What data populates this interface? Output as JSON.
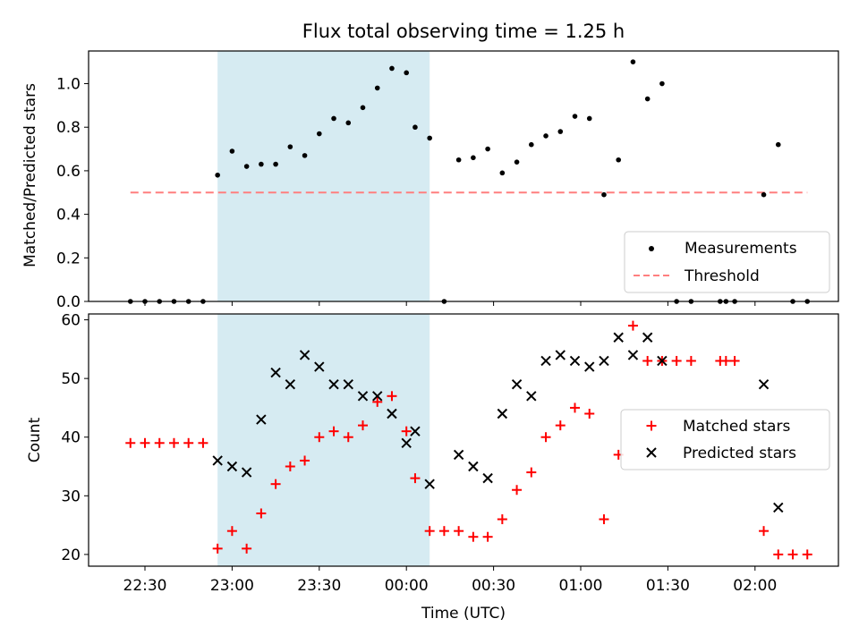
{
  "chart_data": [
    {
      "type": "scatter",
      "title": "Flux total observing time = 1.25 h",
      "ylabel": "Matched/Predicted stars",
      "xlabel": "",
      "ylim": [
        0,
        1.15
      ],
      "yticks": [
        "0.0",
        "0.2",
        "0.4",
        "0.6",
        "0.8",
        "1.0"
      ],
      "grid": false,
      "legend_position": "lower-right",
      "highlight_interval": [
        "22:55",
        "00:08"
      ],
      "series": [
        {
          "name": "Measurements",
          "marker": "dot",
          "color": "#000000",
          "points": [
            [
              "22:25",
              0.0
            ],
            [
              "22:30",
              0.0
            ],
            [
              "22:35",
              0.0
            ],
            [
              "22:40",
              0.0
            ],
            [
              "22:45",
              0.0
            ],
            [
              "22:50",
              0.0
            ],
            [
              "22:55",
              0.58
            ],
            [
              "23:00",
              0.69
            ],
            [
              "23:05",
              0.62
            ],
            [
              "23:10",
              0.63
            ],
            [
              "23:15",
              0.63
            ],
            [
              "23:20",
              0.71
            ],
            [
              "23:25",
              0.67
            ],
            [
              "23:30",
              0.77
            ],
            [
              "23:35",
              0.84
            ],
            [
              "23:40",
              0.82
            ],
            [
              "23:45",
              0.89
            ],
            [
              "23:50",
              0.98
            ],
            [
              "23:55",
              1.07
            ],
            [
              "00:00",
              1.05
            ],
            [
              "00:03",
              0.8
            ],
            [
              "00:08",
              0.75
            ],
            [
              "00:13",
              0.0
            ],
            [
              "00:18",
              0.65
            ],
            [
              "00:23",
              0.66
            ],
            [
              "00:28",
              0.7
            ],
            [
              "00:33",
              0.59
            ],
            [
              "00:38",
              0.64
            ],
            [
              "00:43",
              0.72
            ],
            [
              "00:48",
              0.76
            ],
            [
              "00:53",
              0.78
            ],
            [
              "00:58",
              0.85
            ],
            [
              "01:03",
              0.84
            ],
            [
              "01:08",
              0.49
            ],
            [
              "01:13",
              0.65
            ],
            [
              "01:18",
              1.1
            ],
            [
              "01:23",
              0.93
            ],
            [
              "01:28",
              1.0
            ],
            [
              "01:33",
              0.0
            ],
            [
              "01:38",
              0.0
            ],
            [
              "01:48",
              0.0
            ],
            [
              "01:50",
              0.0
            ],
            [
              "01:53",
              0.0
            ],
            [
              "02:03",
              0.49
            ],
            [
              "02:08",
              0.72
            ],
            [
              "02:13",
              0.0
            ],
            [
              "02:18",
              0.0
            ]
          ]
        },
        {
          "name": "Threshold",
          "marker": "dashed-line",
          "color": "#ff7f7f",
          "points": [
            [
              "22:25",
              0.5
            ],
            [
              "02:18",
              0.5
            ]
          ]
        }
      ]
    },
    {
      "type": "scatter",
      "title": "",
      "ylabel": "Count",
      "xlabel": "Time (UTC)",
      "ylim": [
        18,
        61
      ],
      "yticks": [
        "20",
        "30",
        "40",
        "50",
        "60"
      ],
      "xticks": [
        "22:30",
        "23:00",
        "23:30",
        "00:00",
        "00:30",
        "01:00",
        "01:30",
        "02:00"
      ],
      "grid": false,
      "legend_position": "center-right",
      "highlight_interval": [
        "22:55",
        "00:08"
      ],
      "series": [
        {
          "name": "Matched stars",
          "marker": "plus",
          "color": "#ff0000",
          "points": [
            [
              "22:25",
              39
            ],
            [
              "22:30",
              39
            ],
            [
              "22:35",
              39
            ],
            [
              "22:40",
              39
            ],
            [
              "22:45",
              39
            ],
            [
              "22:50",
              39
            ],
            [
              "22:55",
              21
            ],
            [
              "23:00",
              24
            ],
            [
              "23:05",
              21
            ],
            [
              "23:10",
              27
            ],
            [
              "23:15",
              32
            ],
            [
              "23:20",
              35
            ],
            [
              "23:25",
              36
            ],
            [
              "23:30",
              40
            ],
            [
              "23:35",
              41
            ],
            [
              "23:40",
              40
            ],
            [
              "23:45",
              42
            ],
            [
              "23:50",
              46
            ],
            [
              "23:55",
              47
            ],
            [
              "00:00",
              41
            ],
            [
              "00:03",
              33
            ],
            [
              "00:08",
              24
            ],
            [
              "00:13",
              24
            ],
            [
              "00:18",
              24
            ],
            [
              "00:23",
              23
            ],
            [
              "00:28",
              23
            ],
            [
              "00:33",
              26
            ],
            [
              "00:38",
              31
            ],
            [
              "00:43",
              34
            ],
            [
              "00:48",
              40
            ],
            [
              "00:53",
              42
            ],
            [
              "00:58",
              45
            ],
            [
              "01:03",
              44
            ],
            [
              "01:08",
              26
            ],
            [
              "01:13",
              37
            ],
            [
              "01:18",
              59
            ],
            [
              "01:23",
              53
            ],
            [
              "01:28",
              53
            ],
            [
              "01:33",
              53
            ],
            [
              "01:38",
              53
            ],
            [
              "01:48",
              53
            ],
            [
              "01:50",
              53
            ],
            [
              "01:53",
              53
            ],
            [
              "02:03",
              24
            ],
            [
              "02:08",
              20
            ],
            [
              "02:13",
              20
            ],
            [
              "02:18",
              20
            ]
          ]
        },
        {
          "name": "Predicted stars",
          "marker": "x",
          "color": "#000000",
          "points": [
            [
              "22:55",
              36
            ],
            [
              "23:00",
              35
            ],
            [
              "23:05",
              34
            ],
            [
              "23:10",
              43
            ],
            [
              "23:15",
              51
            ],
            [
              "23:20",
              49
            ],
            [
              "23:25",
              54
            ],
            [
              "23:30",
              52
            ],
            [
              "23:35",
              49
            ],
            [
              "23:40",
              49
            ],
            [
              "23:45",
              47
            ],
            [
              "23:50",
              47
            ],
            [
              "23:55",
              44
            ],
            [
              "00:00",
              39
            ],
            [
              "00:03",
              41
            ],
            [
              "00:08",
              32
            ],
            [
              "00:18",
              37
            ],
            [
              "00:23",
              35
            ],
            [
              "00:28",
              33
            ],
            [
              "00:33",
              44
            ],
            [
              "00:38",
              49
            ],
            [
              "00:43",
              47
            ],
            [
              "00:48",
              53
            ],
            [
              "00:53",
              54
            ],
            [
              "00:58",
              53
            ],
            [
              "01:03",
              52
            ],
            [
              "01:08",
              53
            ],
            [
              "01:13",
              57
            ],
            [
              "01:18",
              54
            ],
            [
              "01:23",
              57
            ],
            [
              "01:28",
              53
            ],
            [
              "02:03",
              49
            ],
            [
              "02:08",
              28
            ]
          ]
        }
      ]
    }
  ],
  "colors": {
    "highlight": "#add8e6",
    "measurements": "#000000",
    "threshold": "#ff7f7f",
    "matched": "#ff0000",
    "predicted": "#000000"
  }
}
